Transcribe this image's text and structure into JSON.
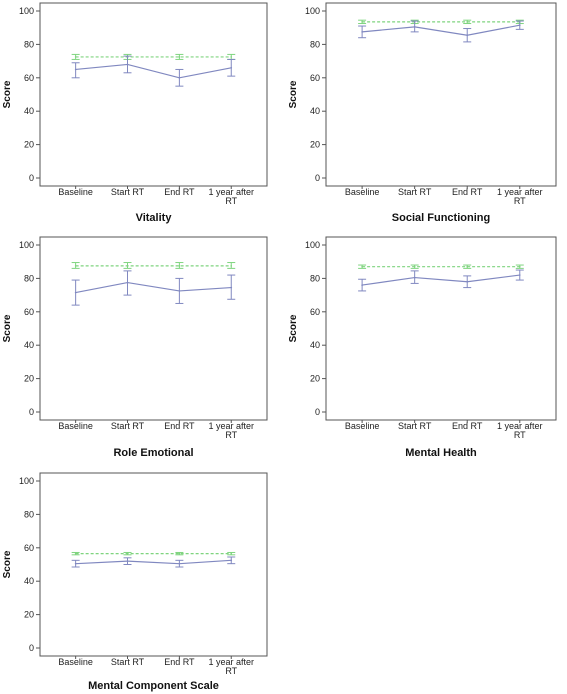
{
  "chart_data": [
    {
      "type": "line",
      "title": "Vitality",
      "ylabel": "Score",
      "ylim": [
        0,
        100
      ],
      "yticks": [
        0,
        20,
        40,
        60,
        80,
        100
      ],
      "categories": [
        "Baseline",
        "Start RT",
        "End RT",
        "1 year after RT"
      ],
      "series": [
        {
          "values": [
            65,
            68,
            60,
            66
          ],
          "ci_low": [
            60,
            63,
            55,
            61
          ],
          "ci_high": [
            69,
            73,
            65,
            71
          ],
          "color": "#8088c0",
          "style": "solid"
        },
        {
          "values": [
            72.5,
            72.5,
            72.5,
            72.5
          ],
          "ci_low": [
            71,
            71,
            71,
            71
          ],
          "ci_high": [
            74,
            74,
            74,
            74
          ],
          "color": "#7fd47f",
          "style": "dashed"
        }
      ]
    },
    {
      "type": "line",
      "title": "Social Functioning",
      "ylabel": "Score",
      "ylim": [
        0,
        100
      ],
      "yticks": [
        0,
        20,
        40,
        60,
        80,
        100
      ],
      "categories": [
        "Baseline",
        "Start RT",
        "End RT",
        "1 year after RT"
      ],
      "series": [
        {
          "values": [
            87.5,
            90.5,
            85.5,
            91.5
          ],
          "ci_low": [
            84,
            87.5,
            81.5,
            89
          ],
          "ci_high": [
            91,
            94,
            89.5,
            94
          ],
          "color": "#8088c0",
          "style": "solid"
        },
        {
          "values": [
            93.5,
            93.5,
            93.5,
            93.5
          ],
          "ci_low": [
            92.5,
            92.5,
            92.5,
            92.5
          ],
          "ci_high": [
            94.5,
            94.5,
            94.5,
            94.5
          ],
          "color": "#7fd47f",
          "style": "dashed"
        }
      ]
    },
    {
      "type": "line",
      "title": "Role Emotional",
      "ylabel": "Score",
      "ylim": [
        0,
        100
      ],
      "yticks": [
        0,
        20,
        40,
        60,
        80,
        100
      ],
      "categories": [
        "Baseline",
        "Start RT",
        "End RT",
        "1 year after RT"
      ],
      "series": [
        {
          "values": [
            71.5,
            77.5,
            72.5,
            74.5
          ],
          "ci_low": [
            64,
            70,
            65,
            67.5
          ],
          "ci_high": [
            79,
            84.5,
            80,
            82
          ],
          "color": "#8088c0",
          "style": "solid"
        },
        {
          "values": [
            87.5,
            87.5,
            87.5,
            87.5
          ],
          "ci_low": [
            86,
            86,
            86,
            86
          ],
          "ci_high": [
            89.5,
            89.5,
            89.5,
            89.5
          ],
          "color": "#7fd47f",
          "style": "dashed"
        }
      ]
    },
    {
      "type": "line",
      "title": "Mental Health",
      "ylabel": "Score",
      "ylim": [
        0,
        100
      ],
      "yticks": [
        0,
        20,
        40,
        60,
        80,
        100
      ],
      "categories": [
        "Baseline",
        "Start RT",
        "End RT",
        "1 year after RT"
      ],
      "series": [
        {
          "values": [
            76,
            80.5,
            78,
            82
          ],
          "ci_low": [
            72.5,
            77,
            74.5,
            79
          ],
          "ci_high": [
            79.5,
            84.5,
            81.5,
            85
          ],
          "color": "#8088c0",
          "style": "solid"
        },
        {
          "values": [
            87,
            87,
            87,
            87
          ],
          "ci_low": [
            86,
            86,
            86,
            86
          ],
          "ci_high": [
            88,
            88,
            88,
            88
          ],
          "color": "#7fd47f",
          "style": "dashed"
        }
      ]
    },
    {
      "type": "line",
      "title": "Mental Component Scale",
      "ylabel": "Score",
      "ylim": [
        0,
        100
      ],
      "yticks": [
        0,
        20,
        40,
        60,
        80,
        100
      ],
      "categories": [
        "Baseline",
        "Start RT",
        "End RT",
        "1 year after RT"
      ],
      "series": [
        {
          "values": [
            50.5,
            52,
            50.5,
            52.5
          ],
          "ci_low": [
            48.5,
            50,
            48.5,
            50.5
          ],
          "ci_high": [
            52.5,
            54,
            52.5,
            54.5
          ],
          "color": "#8088c0",
          "style": "solid"
        },
        {
          "values": [
            56.5,
            56.5,
            56.5,
            56.5
          ],
          "ci_low": [
            55.8,
            55.8,
            55.8,
            55.8
          ],
          "ci_high": [
            57.2,
            57.2,
            57.2,
            57.2
          ],
          "color": "#7fd47f",
          "style": "dashed"
        }
      ]
    }
  ]
}
